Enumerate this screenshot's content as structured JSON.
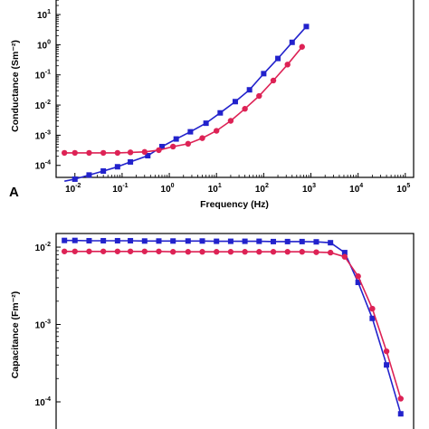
{
  "panel_label": "A",
  "chart_data": [
    {
      "type": "scatter",
      "title": "",
      "xlabel": "Frequency (Hz)",
      "ylabel": "Conductance (Sm⁻²)",
      "xscale": "log",
      "yscale": "log",
      "xlim": [
        0.004,
        150000
      ],
      "ylim": [
        4e-05,
        40
      ],
      "x_ticks": [
        {
          "base": "10",
          "exp": "-2"
        },
        {
          "base": "10",
          "exp": "-1"
        },
        {
          "base": "10",
          "exp": "0"
        },
        {
          "base": "10",
          "exp": "1"
        },
        {
          "base": "10",
          "exp": "2"
        },
        {
          "base": "10",
          "exp": "3"
        },
        {
          "base": "10",
          "exp": "4"
        },
        {
          "base": "10",
          "exp": "5"
        }
      ],
      "y_ticks": [
        {
          "base": "10",
          "exp": "-4"
        },
        {
          "base": "10",
          "exp": "-3"
        },
        {
          "base": "10",
          "exp": "-2"
        },
        {
          "base": "10",
          "exp": "-1"
        },
        {
          "base": "10",
          "exp": "0"
        },
        {
          "base": "10",
          "exp": "1"
        }
      ],
      "grid": false,
      "series": [
        {
          "color": "#2222cc",
          "marker": "square",
          "x": [
            0.006,
            0.01,
            0.02,
            0.04,
            0.08,
            0.15,
            0.35,
            0.7,
            1.4,
            2.8,
            6,
            12,
            25,
            50,
            100,
            200,
            400,
            800
          ],
          "y": [
            3e-05,
            3.5e-05,
            4.8e-05,
            6.5e-05,
            9e-05,
            0.00013,
            0.00021,
            0.00042,
            0.00075,
            0.0013,
            0.0025,
            0.0055,
            0.013,
            0.032,
            0.11,
            0.35,
            1.2,
            4.0
          ]
        },
        {
          "color": "#dd2255",
          "marker": "circle",
          "x": [
            0.006,
            0.01,
            0.02,
            0.04,
            0.08,
            0.15,
            0.3,
            0.6,
            1.2,
            2.5,
            5,
            10,
            20,
            40,
            80,
            160,
            320,
            650
          ],
          "y": [
            0.00026,
            0.00026,
            0.00026,
            0.00026,
            0.00026,
            0.00027,
            0.00028,
            0.00032,
            0.00042,
            0.00052,
            0.0008,
            0.0014,
            0.003,
            0.0075,
            0.02,
            0.065,
            0.22,
            0.85
          ]
        }
      ]
    },
    {
      "type": "scatter",
      "title": "",
      "xlabel": "",
      "ylabel": "Capacitance (Fm⁻²)",
      "xscale": "log",
      "yscale": "log",
      "xlim": [
        0.004,
        150000
      ],
      "ylim": [
        4e-05,
        0.015
      ],
      "y_ticks": [
        {
          "base": "10",
          "exp": "-2"
        },
        {
          "base": "10",
          "exp": "-3"
        },
        {
          "base": "10",
          "exp": "-4"
        }
      ],
      "grid": false,
      "series": [
        {
          "color": "#2222cc",
          "marker": "square",
          "x": [
            0.006,
            0.01,
            0.02,
            0.04,
            0.08,
            0.15,
            0.3,
            0.6,
            1.2,
            2.5,
            5,
            10,
            20,
            40,
            80,
            160,
            320,
            650,
            1300,
            2600,
            5200,
            10000,
            20000,
            40000,
            80000
          ],
          "y": [
            0.0122,
            0.0122,
            0.0121,
            0.0121,
            0.0121,
            0.0121,
            0.012,
            0.012,
            0.012,
            0.012,
            0.012,
            0.0119,
            0.0119,
            0.0119,
            0.0119,
            0.0118,
            0.0118,
            0.0118,
            0.0117,
            0.0114,
            0.0085,
            0.0035,
            0.0012,
            0.0003,
            7e-05
          ]
        },
        {
          "color": "#dd2255",
          "marker": "circle",
          "x": [
            0.006,
            0.01,
            0.02,
            0.04,
            0.08,
            0.15,
            0.3,
            0.6,
            1.2,
            2.5,
            5,
            10,
            20,
            40,
            80,
            160,
            320,
            650,
            1300,
            2600,
            5200,
            10000,
            20000,
            40000,
            80000
          ],
          "y": [
            0.0088,
            0.0088,
            0.0088,
            0.0088,
            0.0088,
            0.0088,
            0.0088,
            0.0088,
            0.0087,
            0.0087,
            0.0087,
            0.0087,
            0.0087,
            0.0087,
            0.0087,
            0.0087,
            0.0087,
            0.0087,
            0.0086,
            0.0085,
            0.0075,
            0.0042,
            0.0016,
            0.00045,
            0.00011
          ]
        }
      ]
    }
  ]
}
